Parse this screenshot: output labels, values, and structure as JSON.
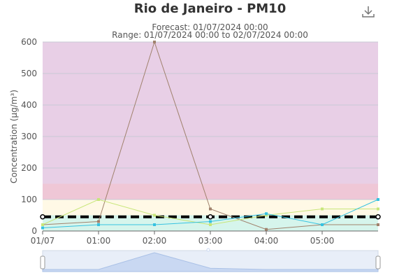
{
  "title": "Rio de Janeiro - PM10",
  "subtitle_line1": "Forecast: 01/07/2024 00:00",
  "subtitle_line2": "Range: 01/07/2024 00:00 to 02/07/2024 00:00",
  "download_icon": "download-icon",
  "chart_data": {
    "type": "line",
    "title": "Rio de Janeiro - PM10",
    "ylabel": "Concentration (μg/m³)",
    "xlabel": "",
    "ylim": [
      0,
      600
    ],
    "yticks": [
      0,
      100,
      200,
      300,
      400,
      500,
      600
    ],
    "xlim": [
      0,
      6
    ],
    "xticks": [
      0,
      1,
      2,
      3,
      4,
      5
    ],
    "xtick_labels": [
      "01/07",
      "01:00",
      "02:00",
      "03:00",
      "04:00",
      "05:00"
    ],
    "grid": true,
    "bands": [
      {
        "from": 0,
        "to": 50,
        "color": "#d6f5ec"
      },
      {
        "from": 50,
        "to": 100,
        "color": "#fff9e6"
      },
      {
        "from": 100,
        "to": 150,
        "color": "#ffe6ea"
      },
      {
        "from": 150,
        "to": 600,
        "color": "#e8cfe6"
      }
    ],
    "bands_extra": [
      {
        "from": 100,
        "to": 150,
        "color": "#e8b9cd"
      }
    ],
    "threshold": {
      "value": 45,
      "color": "#000000"
    },
    "series": [
      {
        "color": "#a0826d",
        "x": [
          0,
          1,
          2,
          3,
          4,
          5,
          6
        ],
        "values": [
          20,
          30,
          600,
          70,
          5,
          20,
          20
        ]
      },
      {
        "color": "#c8e67a",
        "x": [
          0,
          1,
          2,
          3,
          4,
          5,
          6
        ],
        "values": [
          20,
          100,
          50,
          20,
          50,
          70,
          70
        ]
      },
      {
        "color": "#36c2e0",
        "x": [
          0,
          1,
          2,
          3,
          4,
          5,
          6
        ],
        "values": [
          10,
          20,
          20,
          30,
          55,
          20,
          100
        ]
      }
    ],
    "navigator": {
      "values": [
        5,
        5,
        45,
        8,
        5,
        5,
        5
      ]
    }
  }
}
